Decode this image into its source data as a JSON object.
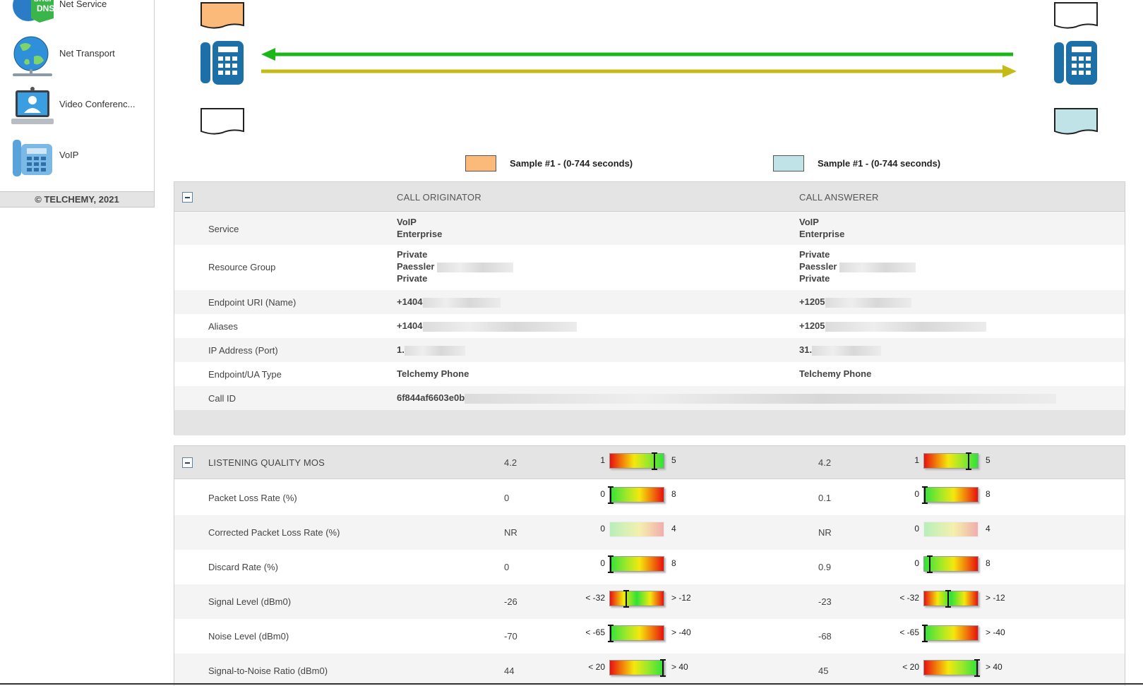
{
  "sidebar": {
    "items": [
      {
        "label": "Net Service",
        "icon": "dhcp-dns-icon"
      },
      {
        "label": "Net Transport",
        "icon": "globe-network-icon"
      },
      {
        "label": "Video Conferenc...",
        "icon": "video-conference-laptop-icon"
      },
      {
        "label": "VoIP",
        "icon": "voip-phone-icon"
      }
    ],
    "copyright": "© TELCHEMY, 2021"
  },
  "diagram": {
    "legend_left": {
      "color": "#fbb97a",
      "label": "Sample #1 - (0-744 seconds)"
    },
    "legend_right": {
      "color": "#bfe3e6",
      "label": "Sample #1 - (0-744 seconds)"
    },
    "arrow_colors": {
      "to_originator": "#1db61a",
      "to_answerer": "#c5bb17"
    },
    "phone_color": "#1d6fa7"
  },
  "details": {
    "originator_header": "CALL ORIGINATOR",
    "answerer_header": "CALL ANSWERER",
    "rows": [
      {
        "label": "Service",
        "originator": [
          "VoIP",
          "Enterprise"
        ],
        "answerer": [
          "VoIP",
          "Enterprise"
        ]
      },
      {
        "label": "Resource Group",
        "originator": [
          "Private",
          "Paessler",
          "Private"
        ],
        "answerer": [
          "Private",
          "Paessler",
          "Private"
        ]
      },
      {
        "label": "Endpoint URI (Name)",
        "originator": [
          "+1404"
        ],
        "answerer": [
          "+1205"
        ]
      },
      {
        "label": "Aliases",
        "originator": [
          "+1404"
        ],
        "answerer": [
          "+1205"
        ]
      },
      {
        "label": "IP Address (Port)",
        "originator": [
          "1."
        ],
        "answerer": [
          "31."
        ]
      },
      {
        "label": "Endpoint/UA Type",
        "originator": [
          "Telchemy Phone"
        ],
        "answerer": [
          "Telchemy Phone"
        ]
      },
      {
        "label": "Call ID",
        "originator": [
          "6f844af6603e0b"
        ],
        "answerer": []
      }
    ]
  },
  "metrics": {
    "header": {
      "label": "LISTENING QUALITY MOS",
      "orig_value": "4.2",
      "ans_value": "4.2",
      "min": "1",
      "max": "5",
      "orig_level": 0.83,
      "ans_level": 0.83
    },
    "rows": [
      {
        "label": "Packet Loss Rate (%)",
        "orig_value": "0",
        "ans_value": "0.1",
        "min": "0",
        "max": "8",
        "scale": "asc",
        "orig_level": 0.0,
        "ans_level": 0.013
      },
      {
        "label": "Corrected Packet Loss Rate (%)",
        "orig_value": "NR",
        "ans_value": "NR",
        "min": "0",
        "max": "4",
        "scale": "asc-faded",
        "orig_level": null,
        "ans_level": null
      },
      {
        "label": "Discard Rate (%)",
        "orig_value": "0",
        "ans_value": "0.9",
        "min": "0",
        "max": "8",
        "scale": "asc",
        "orig_level": 0.0,
        "ans_level": 0.11
      },
      {
        "label": "Signal Level (dBm0)",
        "orig_value": "-26",
        "ans_value": "-23",
        "min": "< -32",
        "max": "> -12",
        "scale": "mid",
        "orig_level": 0.3,
        "ans_level": 0.45
      },
      {
        "label": "Noise Level (dBm0)",
        "orig_value": "-70",
        "ans_value": "-68",
        "min": "< -65",
        "max": "> -40",
        "scale": "asc",
        "orig_level": 0.0,
        "ans_level": 0.0
      },
      {
        "label": "Signal-to-Noise Ratio (dBm0)",
        "orig_value": "44",
        "ans_value": "45",
        "min": "< 20",
        "max": "> 40",
        "scale": "desc",
        "orig_level": 1.0,
        "ans_level": 1.0
      }
    ]
  }
}
